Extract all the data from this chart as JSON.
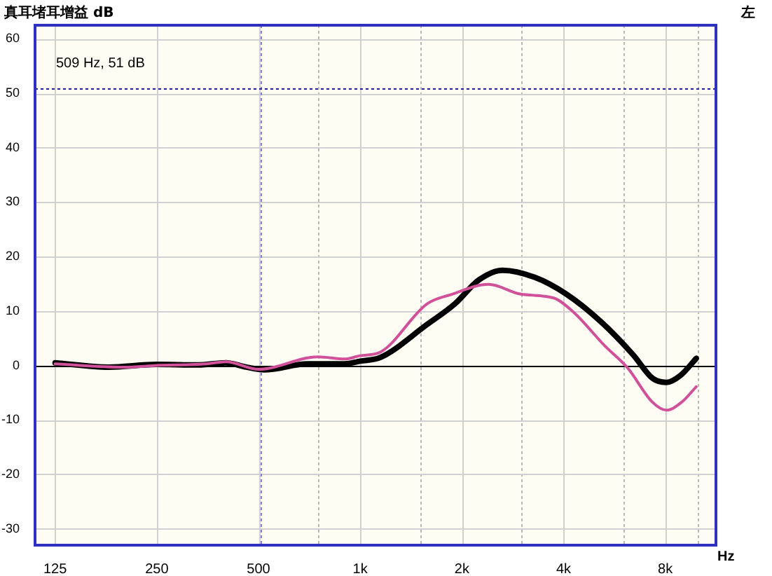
{
  "chart_data": {
    "type": "line",
    "ylabel": "真耳堵耳增益 dB",
    "xlabel": "Hz",
    "annotations": [
      "509 Hz, 51 dB",
      "左"
    ],
    "log": "x",
    "grid": true,
    "legend": false,
    "marker": "none",
    "line_style": "solid",
    "xlim": [
      109,
      11300
    ],
    "ylim": [
      -33,
      62.5
    ],
    "xticks": [
      125,
      250,
      500,
      {
        "value": 750,
        "label": null
      },
      {
        "value": 1000,
        "label": "1k"
      },
      {
        "value": 1500,
        "label": null
      },
      {
        "value": 2000,
        "label": "2k"
      },
      {
        "value": 3000,
        "label": null
      },
      {
        "value": 4000,
        "label": "4k"
      },
      {
        "value": 6000,
        "label": null
      },
      {
        "value": 8000,
        "label": "8k"
      },
      {
        "value": 10000,
        "label": null
      }
    ],
    "yticks": [
      -30,
      -20,
      -10,
      0,
      10,
      20,
      30,
      40,
      50,
      60
    ],
    "ref_lines": [
      {
        "axis": "x",
        "value": 509,
        "color": "#8080d0",
        "line_style": "dotted"
      },
      {
        "axis": "y",
        "value": 51,
        "color": "#2020a0",
        "line_style": "dotted"
      },
      {
        "axis": "y",
        "value": 0,
        "color": "#000000",
        "line_style": "solid"
      }
    ],
    "series": [
      {
        "color": "#d0509a",
        "x": [
          125,
          200,
          250,
          350,
          400,
          500,
          750,
          900,
          1000,
          1150,
          1575,
          1850,
          2400,
          2990,
          3740,
          4280,
          5300,
          6200,
          7320,
          8060,
          8960,
          9880
        ],
        "values": [
          0.3,
          -0.3,
          0,
          0.3,
          0.7,
          -0.7,
          1.6,
          1.2,
          1.8,
          2.5,
          11.3,
          13,
          14.9,
          13.1,
          12.4,
          9.8,
          3.6,
          -0.5,
          -6.7,
          -8.2,
          -6.7,
          -3.9
        ]
      },
      {
        "color": "#000000",
        "x": [
          125,
          180,
          250,
          330,
          400,
          460,
          520,
          700,
          900,
          1000,
          1150,
          1575,
          1905,
          2243,
          2639,
          3288,
          4080,
          5170,
          6420,
          7320,
          8060,
          8880,
          9880
        ],
        "values": [
          0.5,
          -0.3,
          0.2,
          0.1,
          0.5,
          -0.3,
          -0.8,
          0.3,
          0.3,
          0.8,
          1.5,
          7.5,
          11.3,
          15.7,
          17.5,
          16.2,
          13.1,
          8,
          2,
          -2.3,
          -3.1,
          -1.8,
          1.3
        ]
      }
    ]
  }
}
